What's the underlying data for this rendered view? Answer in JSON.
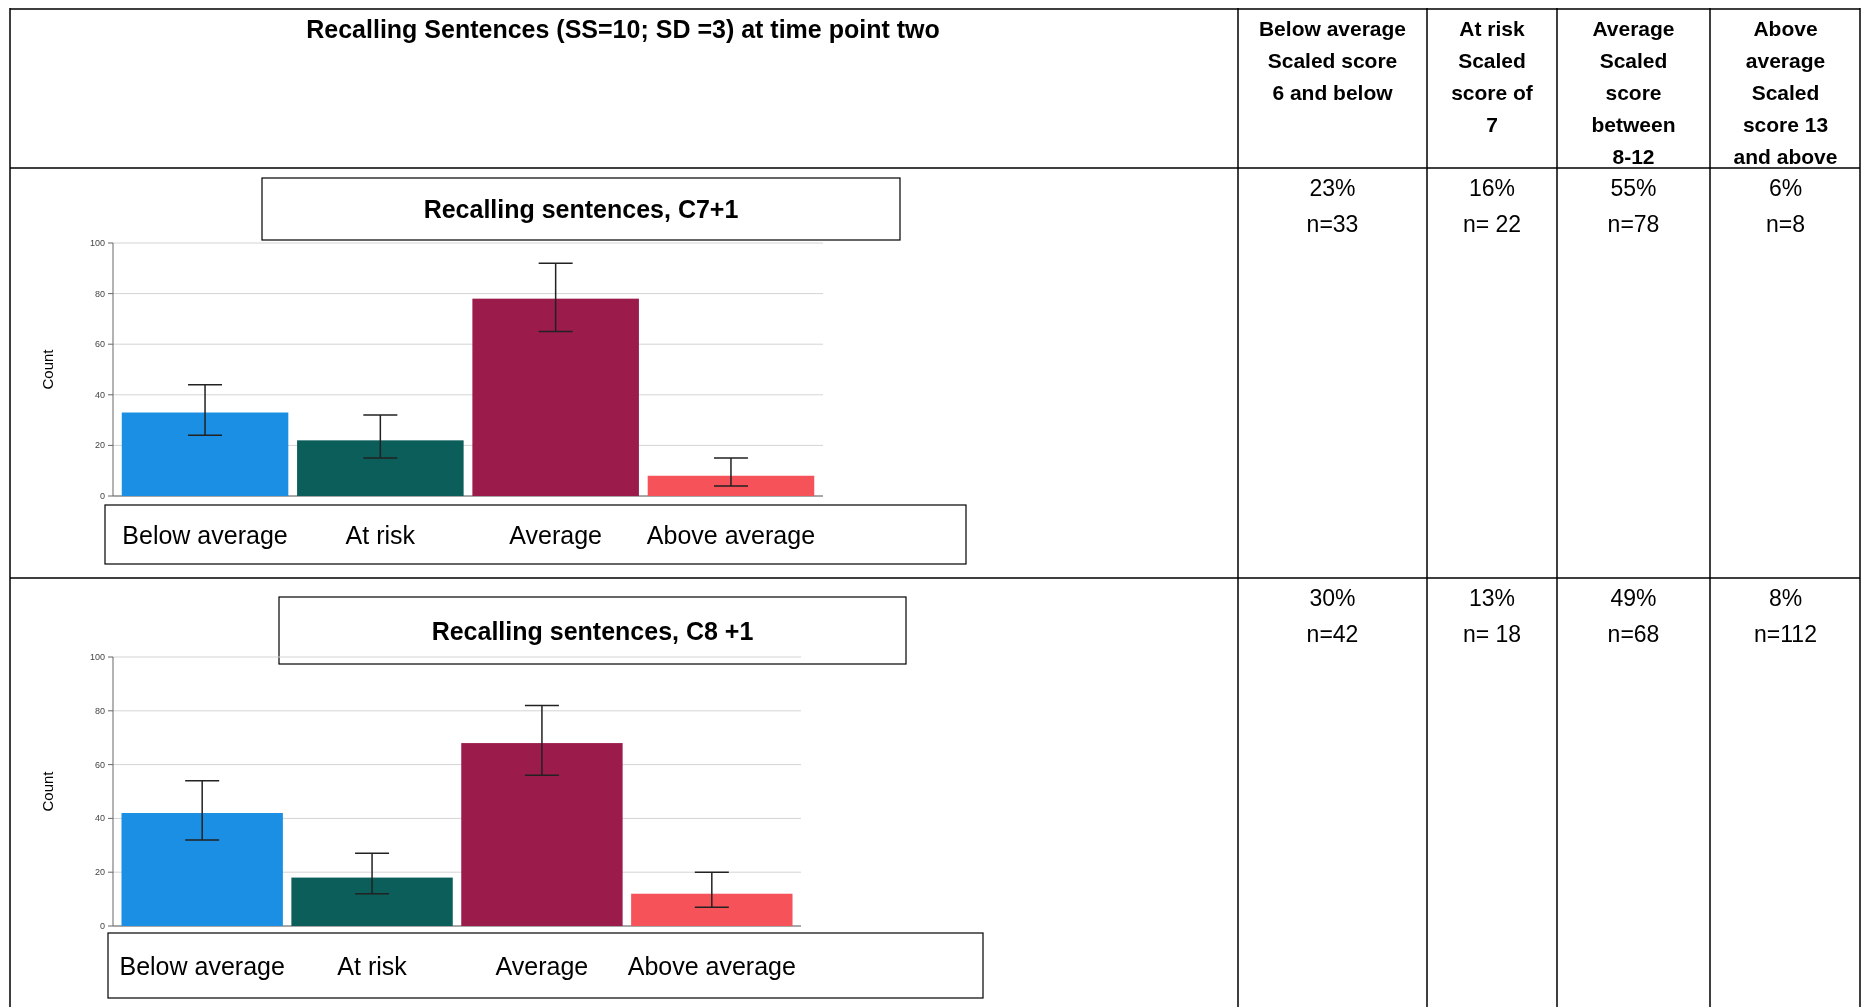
{
  "chart_data": [
    {
      "type": "other",
      "title": "Recalling Sentences (SS=10; SD =3) at time point two",
      "annotations": [
        "Below average Scaled score 6 and below",
        "At risk Scaled score of 7",
        "Average Scaled score between 8-12",
        "Above average Scaled score 13 and above"
      ]
    },
    {
      "type": "bar",
      "title": "Recalling sentences, C7+1",
      "ylabel": "Count",
      "categories": [
        "Below average",
        "At risk",
        "Average",
        "Above average"
      ],
      "values": [
        33,
        22,
        78,
        8
      ],
      "colors": [
        "#1a8fe3",
        "#0b5e5a",
        "#9b1b4b",
        "#f5525a"
      ],
      "errors": [
        [
          24,
          44
        ],
        [
          15,
          32
        ],
        [
          65,
          92
        ],
        [
          4,
          15
        ]
      ],
      "ylim": [
        0,
        100
      ],
      "yticks": [
        0,
        20,
        40,
        60,
        80,
        100
      ],
      "grid": "y"
    },
    {
      "type": "other",
      "annotations": [
        "23%",
        "n=33",
        "16%",
        "n= 22",
        "55%",
        "n=78",
        "6%",
        "n=8"
      ]
    },
    {
      "type": "bar",
      "title": "Recalling sentences, C8 +1",
      "ylabel": "Count",
      "categories": [
        "Below average",
        "At risk",
        "Average",
        "Above average"
      ],
      "values": [
        42,
        18,
        68,
        12
      ],
      "colors": [
        "#1a8fe3",
        "#0b5e5a",
        "#9b1b4b",
        "#f5525a"
      ],
      "errors": [
        [
          32,
          54
        ],
        [
          12,
          27
        ],
        [
          56,
          82
        ],
        [
          7,
          20
        ]
      ],
      "ylim": [
        0,
        100
      ],
      "yticks": [
        0,
        20,
        40,
        60,
        80,
        100
      ],
      "grid": "y"
    },
    {
      "type": "other",
      "annotations": [
        "30%",
        "n=42",
        "13%",
        "n= 18",
        "49%",
        "n=68",
        "8%",
        "n=112"
      ]
    }
  ]
}
